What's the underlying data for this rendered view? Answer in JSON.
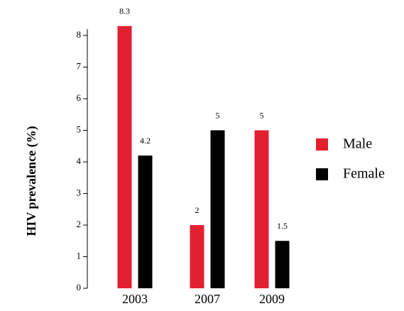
{
  "chart_data": {
    "type": "bar",
    "y_label": "HIV prevalence (%)",
    "categories": [
      "2003",
      "2007",
      "2009"
    ],
    "series": [
      {
        "name": "Male",
        "color": "#e3202f",
        "values": [
          8.3,
          2,
          5
        ]
      },
      {
        "name": "Female",
        "color": "#000000",
        "values": [
          4.2,
          5,
          1.5
        ]
      }
    ],
    "ylim": [
      0,
      8.2
    ],
    "yticks": [
      0,
      1,
      2,
      3,
      4,
      5,
      6,
      7,
      8
    ],
    "legend": "right"
  }
}
